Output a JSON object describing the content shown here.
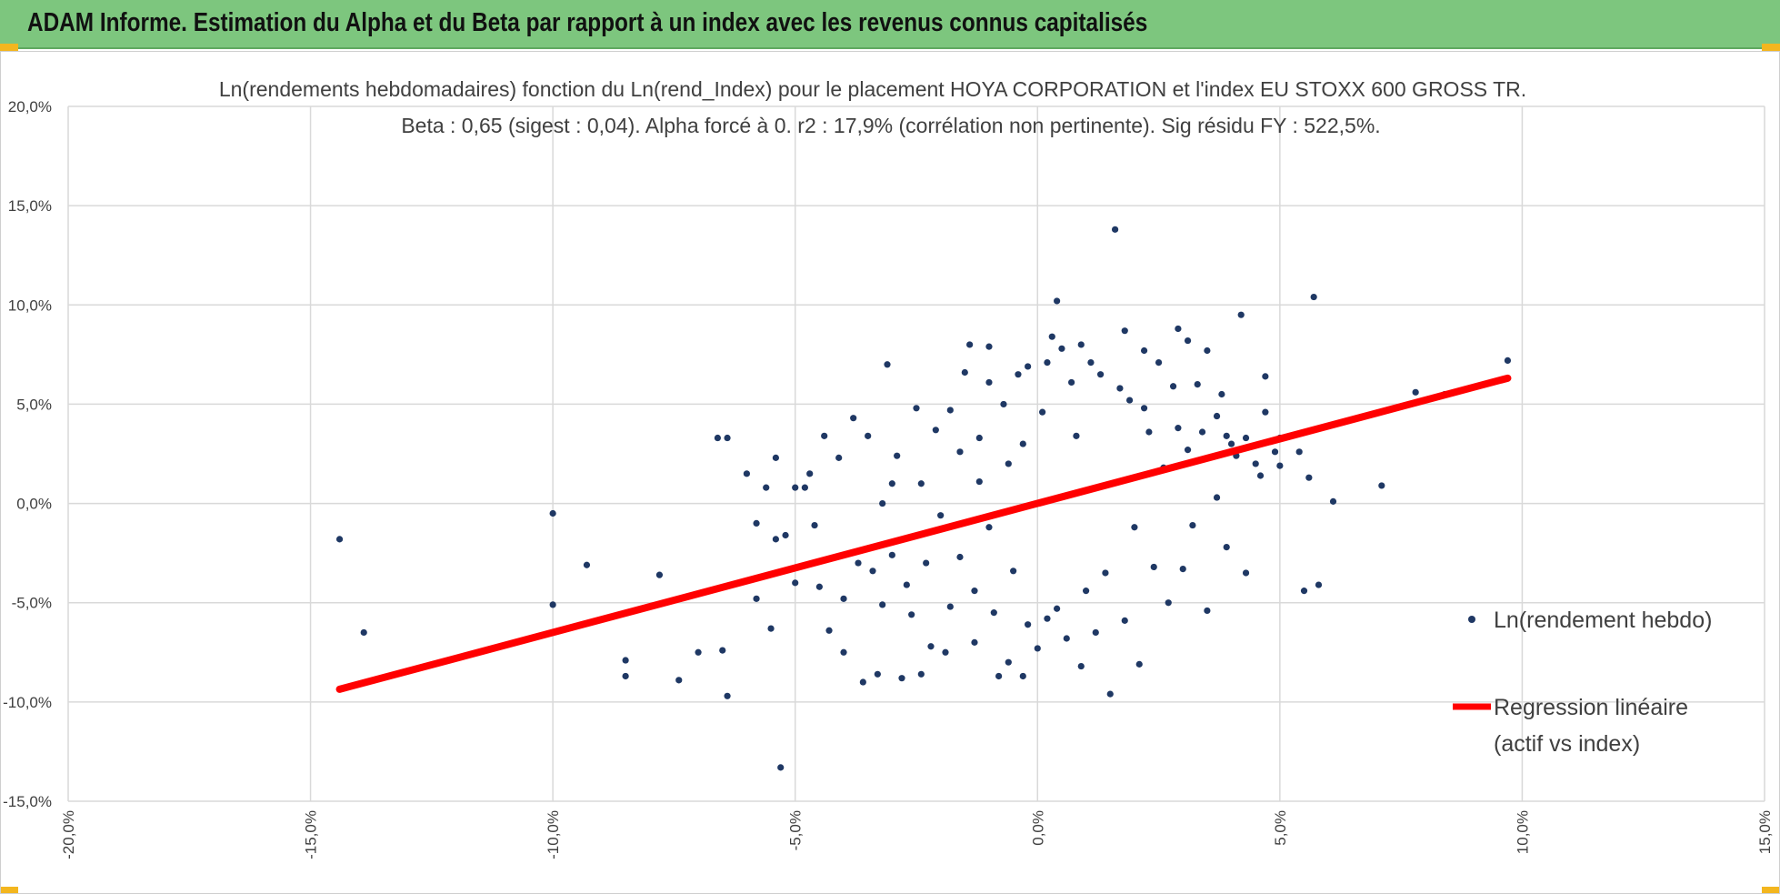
{
  "banner": {
    "title": "ADAM Informe. Estimation du Alpha et du Beta par rapport à un index avec les revenus connus capitalisés"
  },
  "colors": {
    "banner": "#7dc67e",
    "points": "#1f3864",
    "regression": "#ff0000",
    "grid": "#d9d9d9",
    "text": "#404040",
    "corner_marks": "#f3b61f"
  },
  "chart_data": {
    "type": "scatter",
    "title": "Ln(rendements hebdomadaires) fonction du Ln(rend_Index) pour le placement HOYA CORPORATION et l'index EU STOXX 600 GROSS TR.",
    "subtitle": "Beta : 0,65 (sigest : 0,04). Alpha forcé à 0. r2 : 17,9% (corrélation non pertinente). Sig résidu FY : 522,5%.",
    "xlim": [
      -0.2,
      0.15
    ],
    "ylim": [
      -0.15,
      0.2
    ],
    "x_ticks": [
      -0.2,
      -0.15,
      -0.1,
      -0.05,
      0.0,
      0.05,
      0.1,
      0.15
    ],
    "x_tick_labels": [
      "-20,0%",
      "-15,0%",
      "-10,0%",
      "-5,0%",
      "0,0%",
      "5,0%",
      "10,0%",
      "15,0%"
    ],
    "y_ticks": [
      -0.15,
      -0.1,
      -0.05,
      0.0,
      0.05,
      0.1,
      0.15,
      0.2
    ],
    "y_tick_labels": [
      "-15,0%",
      "-10,0%",
      "-5,0%",
      "0,0%",
      "5,0%",
      "10,0%",
      "15,0%",
      "20,0%"
    ],
    "grid": true,
    "legend_position": "right",
    "legend": [
      "Ln(rendement hebdo)",
      "Regression linéaire",
      "(actif vs index)"
    ],
    "series": [
      {
        "name": "Ln(rendement hebdo)",
        "type": "scatter",
        "points": [
          [
            -0.144,
            -0.018
          ],
          [
            -0.139,
            -0.065
          ],
          [
            -0.1,
            -0.005
          ],
          [
            -0.1,
            -0.051
          ],
          [
            -0.093,
            -0.031
          ],
          [
            -0.085,
            -0.079
          ],
          [
            -0.085,
            -0.087
          ],
          [
            -0.078,
            -0.036
          ],
          [
            -0.074,
            -0.089
          ],
          [
            -0.07,
            -0.075
          ],
          [
            -0.065,
            -0.074
          ],
          [
            -0.066,
            0.033
          ],
          [
            -0.064,
            0.033
          ],
          [
            -0.064,
            -0.097
          ],
          [
            -0.06,
            0.015
          ],
          [
            -0.058,
            -0.01
          ],
          [
            -0.058,
            -0.048
          ],
          [
            -0.056,
            0.008
          ],
          [
            -0.055,
            -0.063
          ],
          [
            -0.054,
            0.023
          ],
          [
            -0.054,
            -0.018
          ],
          [
            -0.052,
            -0.016
          ],
          [
            -0.05,
            -0.04
          ],
          [
            -0.05,
            0.008
          ],
          [
            -0.053,
            -0.133
          ],
          [
            -0.048,
            0.008
          ],
          [
            -0.047,
            0.015
          ],
          [
            -0.046,
            -0.011
          ],
          [
            -0.045,
            -0.042
          ],
          [
            -0.044,
            0.034
          ],
          [
            -0.043,
            -0.064
          ],
          [
            -0.041,
            0.023
          ],
          [
            -0.04,
            -0.048
          ],
          [
            -0.04,
            -0.075
          ],
          [
            -0.038,
            0.043
          ],
          [
            -0.037,
            -0.03
          ],
          [
            -0.036,
            -0.09
          ],
          [
            -0.035,
            0.034
          ],
          [
            -0.034,
            -0.034
          ],
          [
            -0.033,
            -0.086
          ],
          [
            -0.032,
            0.0
          ],
          [
            -0.032,
            -0.051
          ],
          [
            -0.031,
            0.07
          ],
          [
            -0.03,
            0.01
          ],
          [
            -0.03,
            -0.026
          ],
          [
            -0.029,
            0.024
          ],
          [
            -0.028,
            -0.088
          ],
          [
            -0.027,
            -0.041
          ],
          [
            -0.026,
            -0.056
          ],
          [
            -0.025,
            0.048
          ],
          [
            -0.024,
            -0.086
          ],
          [
            -0.024,
            0.01
          ],
          [
            -0.023,
            -0.03
          ],
          [
            -0.022,
            -0.072
          ],
          [
            -0.021,
            0.037
          ],
          [
            -0.02,
            -0.006
          ],
          [
            -0.019,
            -0.075
          ],
          [
            -0.018,
            0.047
          ],
          [
            -0.018,
            -0.052
          ],
          [
            -0.016,
            0.026
          ],
          [
            -0.016,
            -0.027
          ],
          [
            -0.015,
            0.066
          ],
          [
            -0.014,
            0.08
          ],
          [
            -0.013,
            -0.07
          ],
          [
            -0.013,
            -0.044
          ],
          [
            -0.012,
            0.033
          ],
          [
            -0.012,
            0.011
          ],
          [
            -0.01,
            -0.012
          ],
          [
            -0.01,
            0.079
          ],
          [
            -0.01,
            0.061
          ],
          [
            -0.009,
            -0.055
          ],
          [
            -0.008,
            -0.087
          ],
          [
            -0.007,
            0.05
          ],
          [
            -0.006,
            -0.08
          ],
          [
            -0.006,
            0.02
          ],
          [
            -0.005,
            -0.034
          ],
          [
            -0.004,
            0.065
          ],
          [
            -0.003,
            0.03
          ],
          [
            -0.003,
            -0.087
          ],
          [
            -0.002,
            0.069
          ],
          [
            -0.002,
            -0.061
          ],
          [
            0.0,
            -0.073
          ],
          [
            0.001,
            0.046
          ],
          [
            0.002,
            0.071
          ],
          [
            0.002,
            -0.058
          ],
          [
            0.003,
            0.084
          ],
          [
            0.004,
            0.102
          ],
          [
            0.004,
            -0.053
          ],
          [
            0.005,
            0.078
          ],
          [
            0.006,
            -0.068
          ],
          [
            0.007,
            0.061
          ],
          [
            0.008,
            0.034
          ],
          [
            0.009,
            -0.082
          ],
          [
            0.009,
            0.08
          ],
          [
            0.01,
            -0.044
          ],
          [
            0.011,
            0.071
          ],
          [
            0.012,
            -0.065
          ],
          [
            0.013,
            0.065
          ],
          [
            0.014,
            -0.035
          ],
          [
            0.015,
            -0.096
          ],
          [
            0.016,
            0.138
          ],
          [
            0.017,
            0.058
          ],
          [
            0.018,
            0.087
          ],
          [
            0.018,
            -0.059
          ],
          [
            0.019,
            0.052
          ],
          [
            0.02,
            -0.012
          ],
          [
            0.021,
            -0.081
          ],
          [
            0.022,
            0.077
          ],
          [
            0.022,
            0.048
          ],
          [
            0.023,
            0.036
          ],
          [
            0.024,
            -0.032
          ],
          [
            0.025,
            0.071
          ],
          [
            0.026,
            0.018
          ],
          [
            0.027,
            -0.05
          ],
          [
            0.028,
            0.059
          ],
          [
            0.029,
            0.088
          ],
          [
            0.029,
            0.038
          ],
          [
            0.03,
            -0.033
          ],
          [
            0.031,
            0.082
          ],
          [
            0.031,
            0.027
          ],
          [
            0.032,
            -0.011
          ],
          [
            0.033,
            0.06
          ],
          [
            0.034,
            0.036
          ],
          [
            0.035,
            0.077
          ],
          [
            0.035,
            -0.054
          ],
          [
            0.037,
            0.044
          ],
          [
            0.037,
            0.003
          ],
          [
            0.038,
            0.055
          ],
          [
            0.039,
            0.034
          ],
          [
            0.039,
            -0.022
          ],
          [
            0.04,
            0.03
          ],
          [
            0.041,
            0.024
          ],
          [
            0.042,
            0.095
          ],
          [
            0.043,
            0.033
          ],
          [
            0.043,
            -0.035
          ],
          [
            0.045,
            0.02
          ],
          [
            0.046,
            0.014
          ],
          [
            0.047,
            0.064
          ],
          [
            0.047,
            0.046
          ],
          [
            0.049,
            0.026
          ],
          [
            0.05,
            0.033
          ],
          [
            0.05,
            0.019
          ],
          [
            0.054,
            0.026
          ],
          [
            0.055,
            -0.044
          ],
          [
            0.056,
            0.013
          ],
          [
            0.057,
            0.104
          ],
          [
            0.058,
            -0.041
          ],
          [
            0.061,
            0.001
          ],
          [
            0.071,
            0.009
          ],
          [
            0.078,
            0.056
          ],
          [
            0.084,
            0.055
          ],
          [
            0.097,
            0.072
          ]
        ]
      },
      {
        "name": "Regression linéaire",
        "type": "line",
        "beta": 0.65,
        "x": [
          -0.144,
          0.097
        ],
        "y": [
          -0.0936,
          0.0631
        ]
      }
    ]
  }
}
